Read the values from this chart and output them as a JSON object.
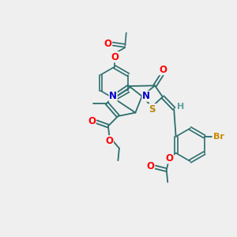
{
  "bg_color": "#efefef",
  "bond_color": "#2d6e6e",
  "atom_colors": {
    "O": "#ff0000",
    "N": "#0000cc",
    "S": "#b8860b",
    "Br": "#cc8800",
    "H": "#5f9ea0",
    "C": "#2d6e6e"
  },
  "figsize": [
    3.0,
    3.0
  ],
  "dpi": 100
}
